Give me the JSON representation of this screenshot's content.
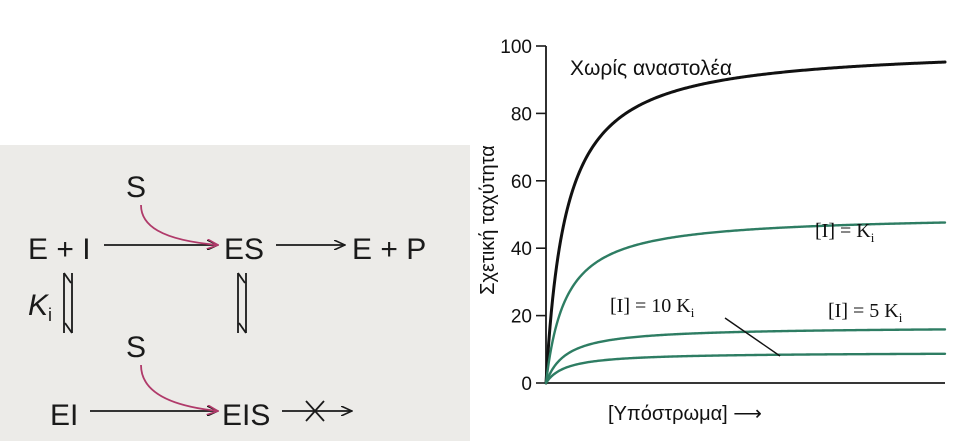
{
  "scheme": {
    "row1": {
      "left": "E + I",
      "substrate": "S",
      "middle": "ES",
      "right": "E + P"
    },
    "row2": {
      "left": "EI",
      "substrate": "S",
      "middle": "EIS"
    },
    "ki_label": {
      "main": "K",
      "sub": "i"
    },
    "colors": {
      "accent_arrow": "#b03a6a",
      "ink": "#1a1a1a",
      "background": "#ecebe8"
    }
  },
  "chart_data": {
    "type": "line",
    "ylabel": "Σχετική ταχύτητα",
    "xlabel": "[Υπόστρωμα] ⟶",
    "ylim": [
      0,
      100
    ],
    "yticks": [
      0,
      20,
      40,
      60,
      80,
      100
    ],
    "grid": false,
    "series": [
      {
        "name": "Χωρίς αναστολέα",
        "vmax": 100,
        "km": 0.6,
        "color": "#111111"
      },
      {
        "name": "[I] = K_i",
        "label_main": "[I] = K",
        "label_sub": "i",
        "vmax": 50,
        "km": 0.6,
        "color": "#2e7d63"
      },
      {
        "name": "[I] = 5 K_i",
        "label_main": "[I] = 5 K",
        "label_sub": "i",
        "vmax": 16.7,
        "km": 0.6,
        "color": "#2e7d63"
      },
      {
        "name": "[I] = 10 K_i",
        "label_main": "[I] = 10 K",
        "label_sub": "i",
        "vmax": 9.1,
        "km": 0.6,
        "color": "#2e7d63"
      }
    ],
    "x_max": 12,
    "axis_color": "#1a1a1a"
  }
}
